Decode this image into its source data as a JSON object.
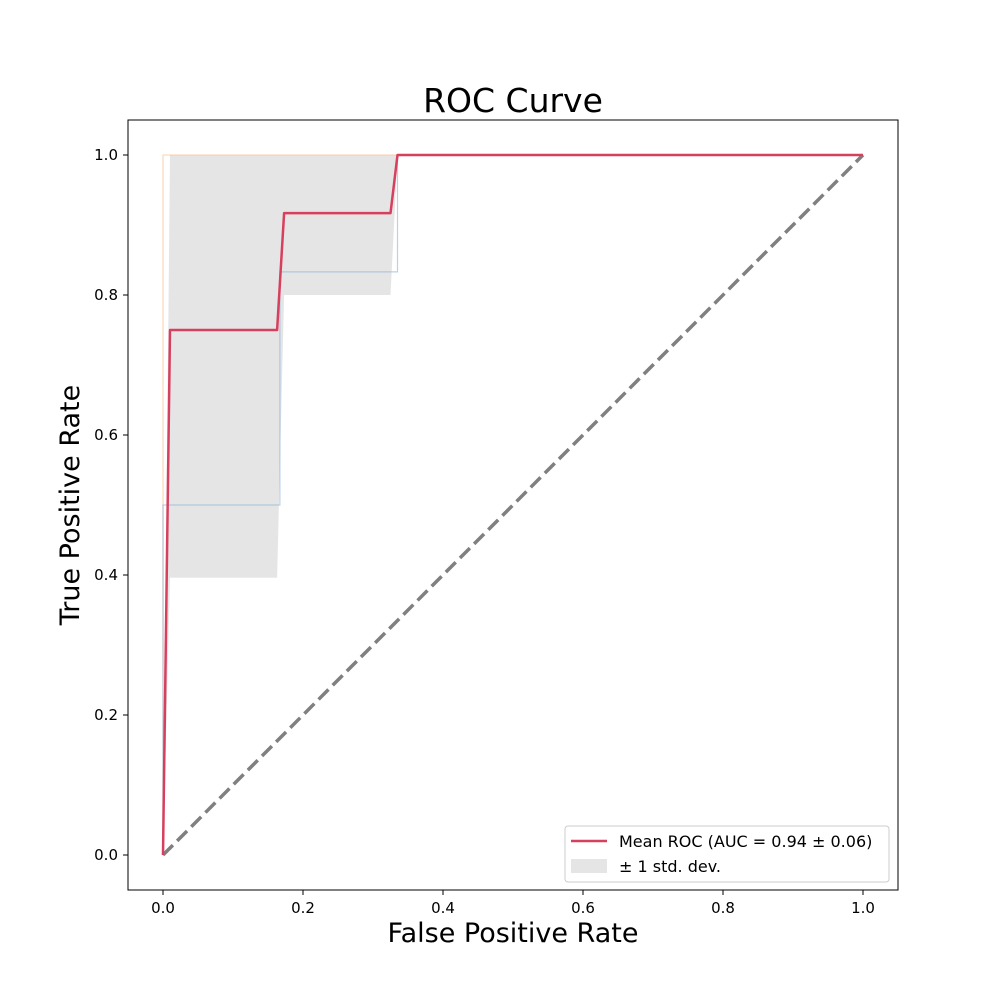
{
  "chart_data": {
    "type": "line",
    "title": "ROC Curve",
    "xlabel": "False Positive Rate",
    "ylabel": "True Positive Rate",
    "xlim": [
      -0.05,
      1.05
    ],
    "ylim": [
      -0.05,
      1.05
    ],
    "xticks": [
      "0.0",
      "0.2",
      "0.4",
      "0.6",
      "0.8",
      "1.0"
    ],
    "yticks": [
      "0.0",
      "0.2",
      "0.4",
      "0.6",
      "0.8",
      "1.0"
    ],
    "grid": false,
    "legend_position": "lower-right",
    "legend": {
      "mean_label": "Mean ROC (AUC = 0.94 ± 0.06)",
      "band_label": "± 1 std. dev."
    },
    "colors": {
      "mean": "#d6405e",
      "band": "#cccccc",
      "chance": "#808080",
      "fold_1": "#f5c08a",
      "fold_2": "#8fb3d9"
    },
    "series": [
      {
        "name": "Mean ROC (AUC = 0.94 ± 0.06)",
        "role": "mean",
        "x": [
          0.0,
          0.01,
          0.163,
          0.173,
          0.325,
          0.335,
          1.0
        ],
        "y": [
          0.0,
          0.75,
          0.75,
          0.917,
          0.917,
          1.0,
          1.0
        ]
      },
      {
        "role": "fold",
        "x": [
          0.0,
          0.0,
          0.335,
          1.0
        ],
        "y": [
          0.0,
          1.0,
          1.0,
          1.0
        ]
      },
      {
        "role": "fold",
        "x": [
          0.0,
          0.0,
          0.167,
          0.167,
          0.335,
          0.335,
          1.0
        ],
        "y": [
          0.0,
          0.5,
          0.5,
          0.833,
          0.833,
          1.0,
          1.0
        ]
      },
      {
        "role": "chance",
        "x": [
          0.0,
          1.0
        ],
        "y": [
          0.0,
          1.0
        ]
      }
    ],
    "band": {
      "name": "± 1 std. dev.",
      "x": [
        0.0,
        0.01,
        0.163,
        0.173,
        0.325,
        0.335,
        1.0
      ],
      "upper": [
        0.0,
        1.0,
        1.0,
        1.0,
        1.0,
        1.0,
        1.0
      ],
      "lower": [
        0.0,
        0.396,
        0.396,
        0.8,
        0.8,
        1.0,
        1.0
      ]
    }
  }
}
